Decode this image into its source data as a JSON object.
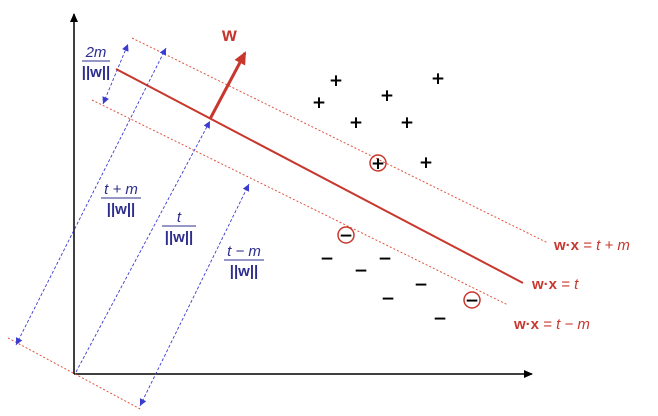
{
  "colors": {
    "hyperplane": "#c8372d",
    "margin_lines": "#e0553f",
    "measure_lines": "#3b3bd1",
    "labels": "#2d2d8f",
    "axes": "#000000"
  },
  "vector": {
    "label": "w"
  },
  "equations": {
    "upper": {
      "lhs": "w",
      "dot": "·",
      "x": "x",
      "rest": " = t + m"
    },
    "center": {
      "lhs": "w",
      "dot": "·",
      "x": "x",
      "rest": " = t"
    },
    "lower": {
      "lhs": "w",
      "dot": "·",
      "x": "x",
      "rest": " = t − m"
    }
  },
  "fractions": {
    "two_m": {
      "num": "2m",
      "den": "||w||"
    },
    "t_plus_m": {
      "num": "t + m",
      "den": "||w||"
    },
    "t": {
      "num": "t",
      "den": "||w||"
    },
    "t_minus_m": {
      "num": "t − m",
      "den": "||w||"
    }
  },
  "signs": {
    "plus": "+",
    "minus": "−"
  }
}
